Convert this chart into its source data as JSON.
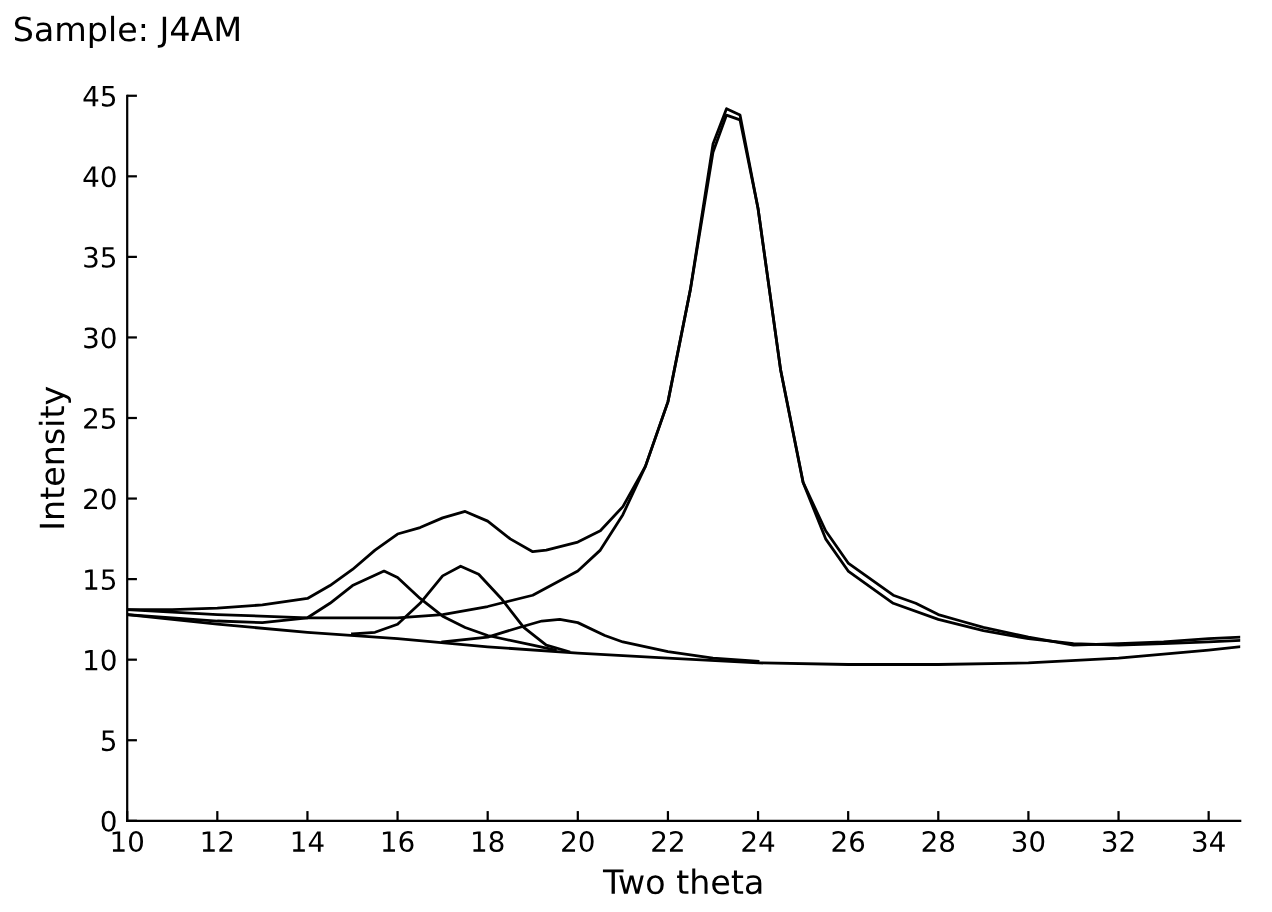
{
  "chart_data": {
    "type": "line",
    "title": "Sample: J4AM",
    "xlabel": "Two theta",
    "ylabel": "Intensity",
    "xlim": [
      10,
      34.7
    ],
    "xticks": [
      10,
      12,
      14,
      16,
      18,
      20,
      22,
      24,
      26,
      28,
      30,
      32,
      34
    ],
    "ylim": [
      0,
      45
    ],
    "yticks": [
      0,
      5,
      10,
      15,
      20,
      25,
      30,
      35,
      40,
      45
    ],
    "grid": false,
    "legend": false,
    "marker": "none",
    "line_style": "solid",
    "series": [
      {
        "color": "#000000",
        "x": [
          10,
          11,
          12,
          13,
          14,
          14.5,
          15,
          15.5,
          16,
          16.5,
          17,
          17.5,
          18,
          18.5,
          19,
          19.3,
          20,
          20.5,
          21,
          21.5,
          22,
          22.5,
          23,
          23.3,
          23.6,
          24,
          24.5,
          25,
          25.5,
          26,
          27,
          27.5,
          28,
          28.5,
          29,
          30,
          31,
          32,
          33,
          34,
          34.7
        ],
        "values": [
          13.1,
          13.1,
          13.2,
          13.4,
          13.8,
          14.6,
          15.6,
          16.8,
          17.8,
          18.2,
          18.8,
          19.2,
          18.6,
          17.5,
          16.7,
          16.8,
          17.3,
          18,
          19.5,
          22,
          26,
          33,
          42,
          44.2,
          43.8,
          38,
          28,
          21,
          18,
          16,
          14,
          13.5,
          12.8,
          12.4,
          12,
          11.4,
          10.9,
          11,
          11.1,
          11.3,
          11.4
        ]
      },
      {
        "color": "#000000",
        "x": [
          10,
          12,
          14,
          16,
          17,
          18,
          19,
          20,
          20.5,
          21,
          21.5,
          22,
          22.5,
          23,
          23.3,
          23.6,
          24,
          24.5,
          25,
          25.5,
          26,
          27,
          28,
          29,
          30,
          31,
          32,
          33,
          34,
          34.7
        ],
        "values": [
          13.1,
          12.8,
          12.6,
          12.6,
          12.8,
          13.3,
          14,
          15.5,
          16.8,
          19,
          22,
          26,
          33,
          41.5,
          43.8,
          43.5,
          38,
          28,
          21,
          17.5,
          15.5,
          13.5,
          12.5,
          11.8,
          11.3,
          11,
          10.9,
          11,
          11.1,
          11.2
        ]
      },
      {
        "color": "#000000",
        "x": [
          10,
          12,
          13,
          14,
          14.5,
          15,
          15.7,
          16,
          16.5,
          17,
          17.5,
          18,
          19,
          19.5
        ],
        "values": [
          12.8,
          12.4,
          12.3,
          12.6,
          13.5,
          14.6,
          15.5,
          15.1,
          13.8,
          12.7,
          12,
          11.5,
          10.9,
          10.6
        ]
      },
      {
        "color": "#000000",
        "x": [
          15,
          15.5,
          16,
          16.5,
          17,
          17.4,
          17.8,
          18.3,
          18.8,
          19.3,
          19.8
        ],
        "values": [
          11.6,
          11.7,
          12.2,
          13.5,
          15.2,
          15.8,
          15.3,
          13.8,
          12,
          10.9,
          10.5
        ]
      },
      {
        "color": "#000000",
        "x": [
          17,
          18,
          18.7,
          19.2,
          19.6,
          20,
          20.6,
          21,
          22,
          23,
          24
        ],
        "values": [
          11.1,
          11.4,
          12,
          12.4,
          12.5,
          12.3,
          11.5,
          11.1,
          10.5,
          10.1,
          9.9
        ]
      },
      {
        "color": "#000000",
        "x": [
          10,
          12,
          14,
          16,
          18,
          20,
          22,
          24,
          26,
          28,
          30,
          32,
          34,
          34.7
        ],
        "values": [
          12.8,
          12.2,
          11.7,
          11.3,
          10.8,
          10.4,
          10.1,
          9.8,
          9.7,
          9.7,
          9.8,
          10.1,
          10.6,
          10.8
        ]
      }
    ]
  }
}
